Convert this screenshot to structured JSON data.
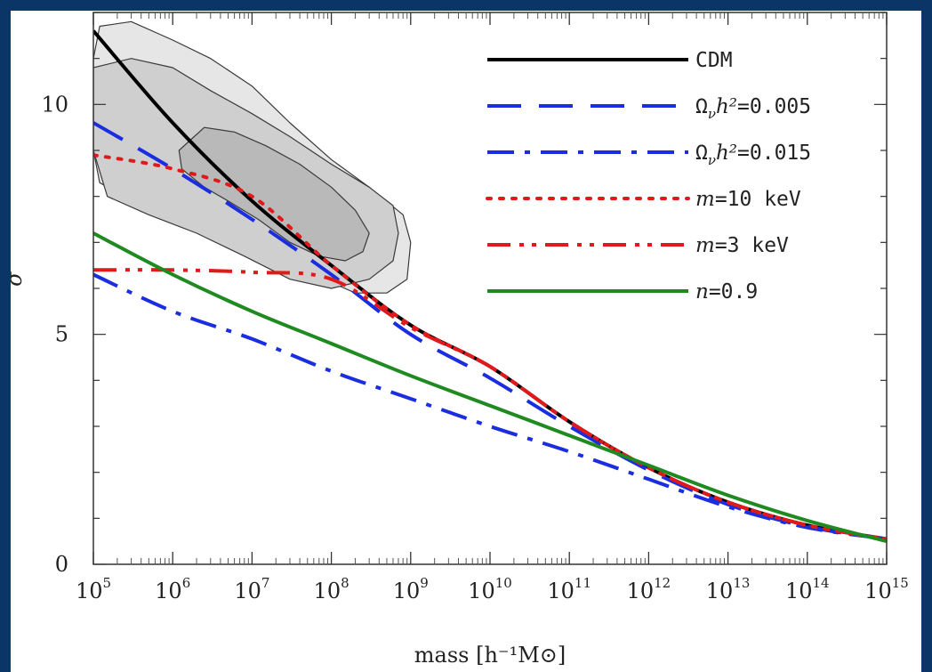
{
  "chart_data": {
    "type": "line",
    "xscale": "log",
    "xlim": [
      100000,
      1000000000000000
    ],
    "ylim": [
      0,
      12
    ],
    "grid": false,
    "legend_position": "top-right",
    "xlabel": "mass [h⁻¹M⊙]",
    "ylabel": "σ",
    "xticks": [
      {
        "base": "10",
        "exp": "5"
      },
      {
        "base": "10",
        "exp": "6"
      },
      {
        "base": "10",
        "exp": "7"
      },
      {
        "base": "10",
        "exp": "8"
      },
      {
        "base": "10",
        "exp": "9"
      },
      {
        "base": "10",
        "exp": "10"
      },
      {
        "base": "10",
        "exp": "11"
      },
      {
        "base": "10",
        "exp": "12"
      },
      {
        "base": "10",
        "exp": "13"
      },
      {
        "base": "10",
        "exp": "14"
      },
      {
        "base": "10",
        "exp": "15"
      }
    ],
    "yticks": [
      "0",
      "5",
      "10"
    ],
    "series": [
      {
        "name": "CDM",
        "color": "#000000",
        "style": "solid",
        "x": [
          100000,
          1000000,
          10000000,
          100000000,
          1000000000,
          10000000000,
          100000000000,
          1000000000000,
          10000000000000,
          100000000000000,
          1000000000000000
        ],
        "y": [
          11.6,
          9.6,
          7.9,
          6.5,
          5.2,
          4.3,
          3.1,
          2.1,
          1.35,
          0.85,
          0.55
        ]
      },
      {
        "name": "Ω_νh²=0.005",
        "color": "#1a2ee0",
        "style": "dashed",
        "x": [
          100000,
          1000000,
          10000000,
          100000000,
          1000000000,
          10000000000,
          100000000000,
          1000000000000,
          10000000000000,
          100000000000000,
          1000000000000000
        ],
        "y": [
          9.6,
          8.6,
          7.5,
          6.3,
          5.0,
          4.05,
          3.0,
          2.05,
          1.3,
          0.82,
          0.55
        ]
      },
      {
        "name": "Ω_νh²=0.015",
        "color": "#1a2ee0",
        "style": "dashdot",
        "x": [
          100000,
          1000000,
          10000000,
          100000000,
          1000000000,
          10000000000,
          100000000000,
          1000000000000,
          10000000000000,
          100000000000000,
          1000000000000000
        ],
        "y": [
          6.3,
          5.5,
          4.9,
          4.2,
          3.6,
          3.0,
          2.45,
          1.85,
          1.25,
          0.8,
          0.55
        ]
      },
      {
        "name": "m=10 keV",
        "color": "#e01a1a",
        "style": "dotted",
        "x": [
          100000,
          1000000,
          10000000,
          100000000,
          1000000000,
          10000000000,
          100000000000,
          1000000000000,
          10000000000000,
          100000000000000,
          1000000000000000
        ],
        "y": [
          8.9,
          8.6,
          8.0,
          6.5,
          5.2,
          4.3,
          3.1,
          2.1,
          1.35,
          0.85,
          0.55
        ]
      },
      {
        "name": "m=3 keV",
        "color": "#e01a1a",
        "style": "dashdotdot",
        "x": [
          100000,
          1000000,
          10000000,
          100000000,
          1000000000,
          10000000000,
          100000000000,
          1000000000000,
          10000000000000,
          100000000000000,
          1000000000000000
        ],
        "y": [
          6.4,
          6.4,
          6.35,
          6.2,
          5.15,
          4.3,
          3.1,
          2.1,
          1.35,
          0.85,
          0.55
        ]
      },
      {
        "name": "n=0.9",
        "color": "#1f8a1f",
        "style": "solid",
        "x": [
          100000,
          1000000,
          10000000,
          100000000,
          1000000000,
          10000000000,
          100000000000,
          1000000000000,
          10000000000000,
          100000000000000,
          1000000000000000
        ],
        "y": [
          7.2,
          6.3,
          5.5,
          4.8,
          4.1,
          3.45,
          2.8,
          2.15,
          1.5,
          0.95,
          0.5
        ]
      }
    ],
    "confidence_contours": [
      {
        "level": "outer",
        "fill": "#e6e6e6",
        "x": [
          100000,
          120000,
          300000,
          1000000,
          3000000,
          10000000,
          30000000,
          100000000,
          300000000,
          800000000,
          1000000000,
          900000000,
          500000000,
          200000000,
          60000000,
          15000000,
          4000000,
          1000000,
          300000,
          120000,
          100000
        ],
        "y": [
          11.0,
          11.7,
          11.8,
          11.4,
          11.0,
          10.4,
          9.6,
          8.8,
          8.2,
          7.6,
          7.0,
          6.2,
          5.9,
          5.9,
          6.3,
          6.8,
          7.2,
          7.6,
          7.9,
          8.3,
          9.0
        ]
      },
      {
        "level": "middle",
        "fill": "#cfcfcf",
        "x": [
          100000,
          300000,
          1000000,
          3000000,
          10000000,
          30000000,
          100000000,
          300000000,
          600000000,
          700000000,
          600000000,
          300000000,
          100000000,
          30000000,
          8000000,
          2000000,
          500000,
          150000,
          100000
        ],
        "y": [
          10.8,
          11.0,
          10.8,
          10.3,
          9.8,
          9.3,
          8.7,
          8.2,
          7.8,
          7.2,
          6.6,
          6.2,
          6.0,
          6.2,
          6.7,
          7.2,
          7.6,
          8.0,
          9.0
        ]
      },
      {
        "level": "inner",
        "fill": "#b9b9b9",
        "x": [
          1200000,
          2500000,
          6000000,
          15000000,
          40000000,
          100000000,
          200000000,
          300000000,
          250000000,
          150000000,
          70000000,
          30000000,
          12000000,
          5000000,
          2500000,
          1300000
        ],
        "y": [
          9.0,
          9.5,
          9.4,
          9.1,
          8.7,
          8.2,
          7.7,
          7.2,
          6.8,
          6.6,
          6.7,
          7.0,
          7.5,
          7.9,
          8.2,
          8.6
        ]
      }
    ]
  }
}
